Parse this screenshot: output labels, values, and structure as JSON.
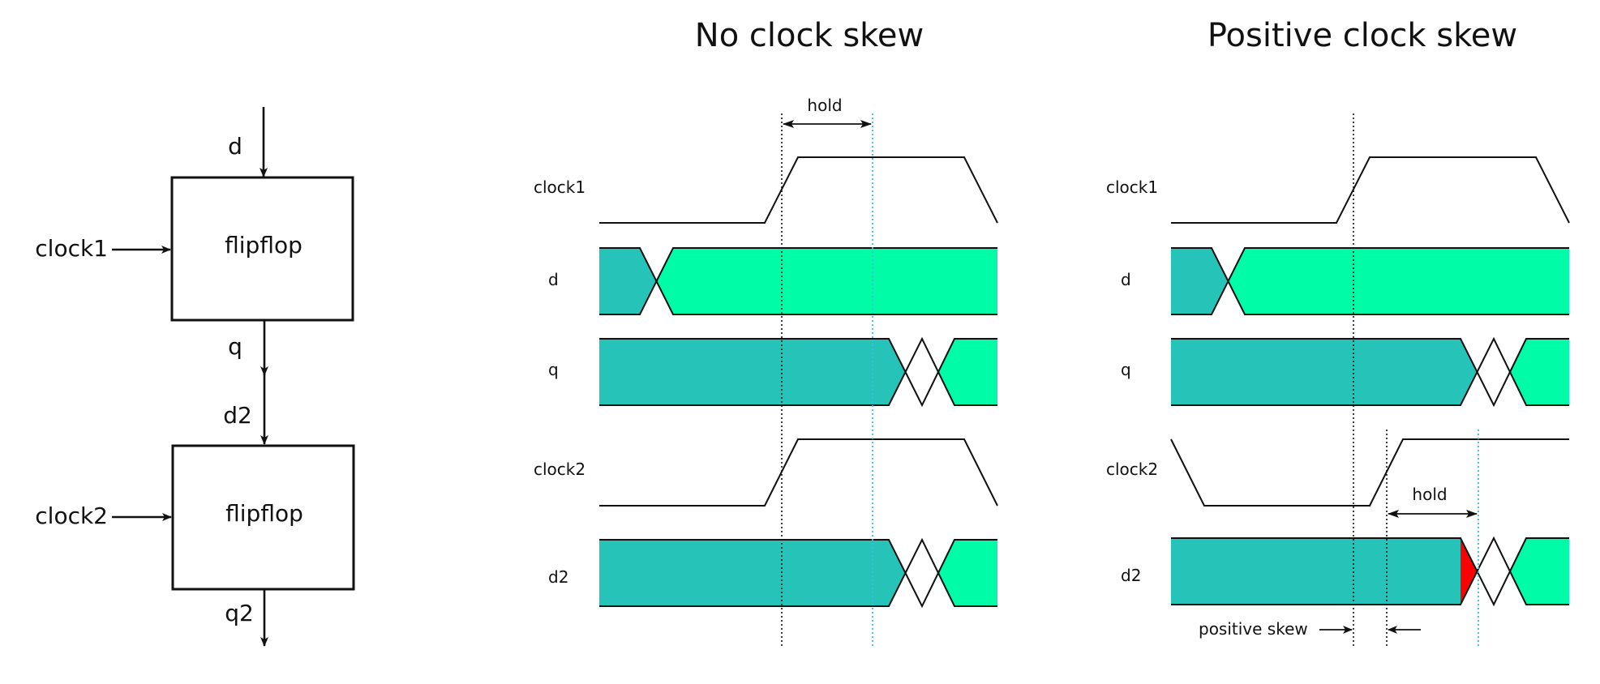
{
  "block_diagram": {
    "input_d": "d",
    "clock1": "clock1",
    "flipflop1": "flipflop",
    "q": "q",
    "d2": "d2",
    "clock2": "clock2",
    "flipflop2": "flipflop",
    "q2": "q2"
  },
  "panel_no_skew": {
    "title": "No clock skew",
    "hold": "hold",
    "labels": {
      "clock1": "clock1",
      "d": "d",
      "q": "q",
      "clock2": "clock2",
      "d2": "d2"
    }
  },
  "panel_positive_skew": {
    "title": "Positive clock skew",
    "hold": "hold",
    "positive_skew": "positive skew",
    "labels": {
      "clock1": "clock1",
      "d": "d",
      "q": "q",
      "clock2": "clock2",
      "d2": "d2"
    }
  },
  "colors": {
    "old_data": "#26c4b8",
    "new_data": "#00fca6",
    "violation": "#ff0000",
    "hold_marker": "#3cc0dc",
    "line": "#111111"
  },
  "icons": {
    "arrowhead": "arrowhead-icon"
  }
}
